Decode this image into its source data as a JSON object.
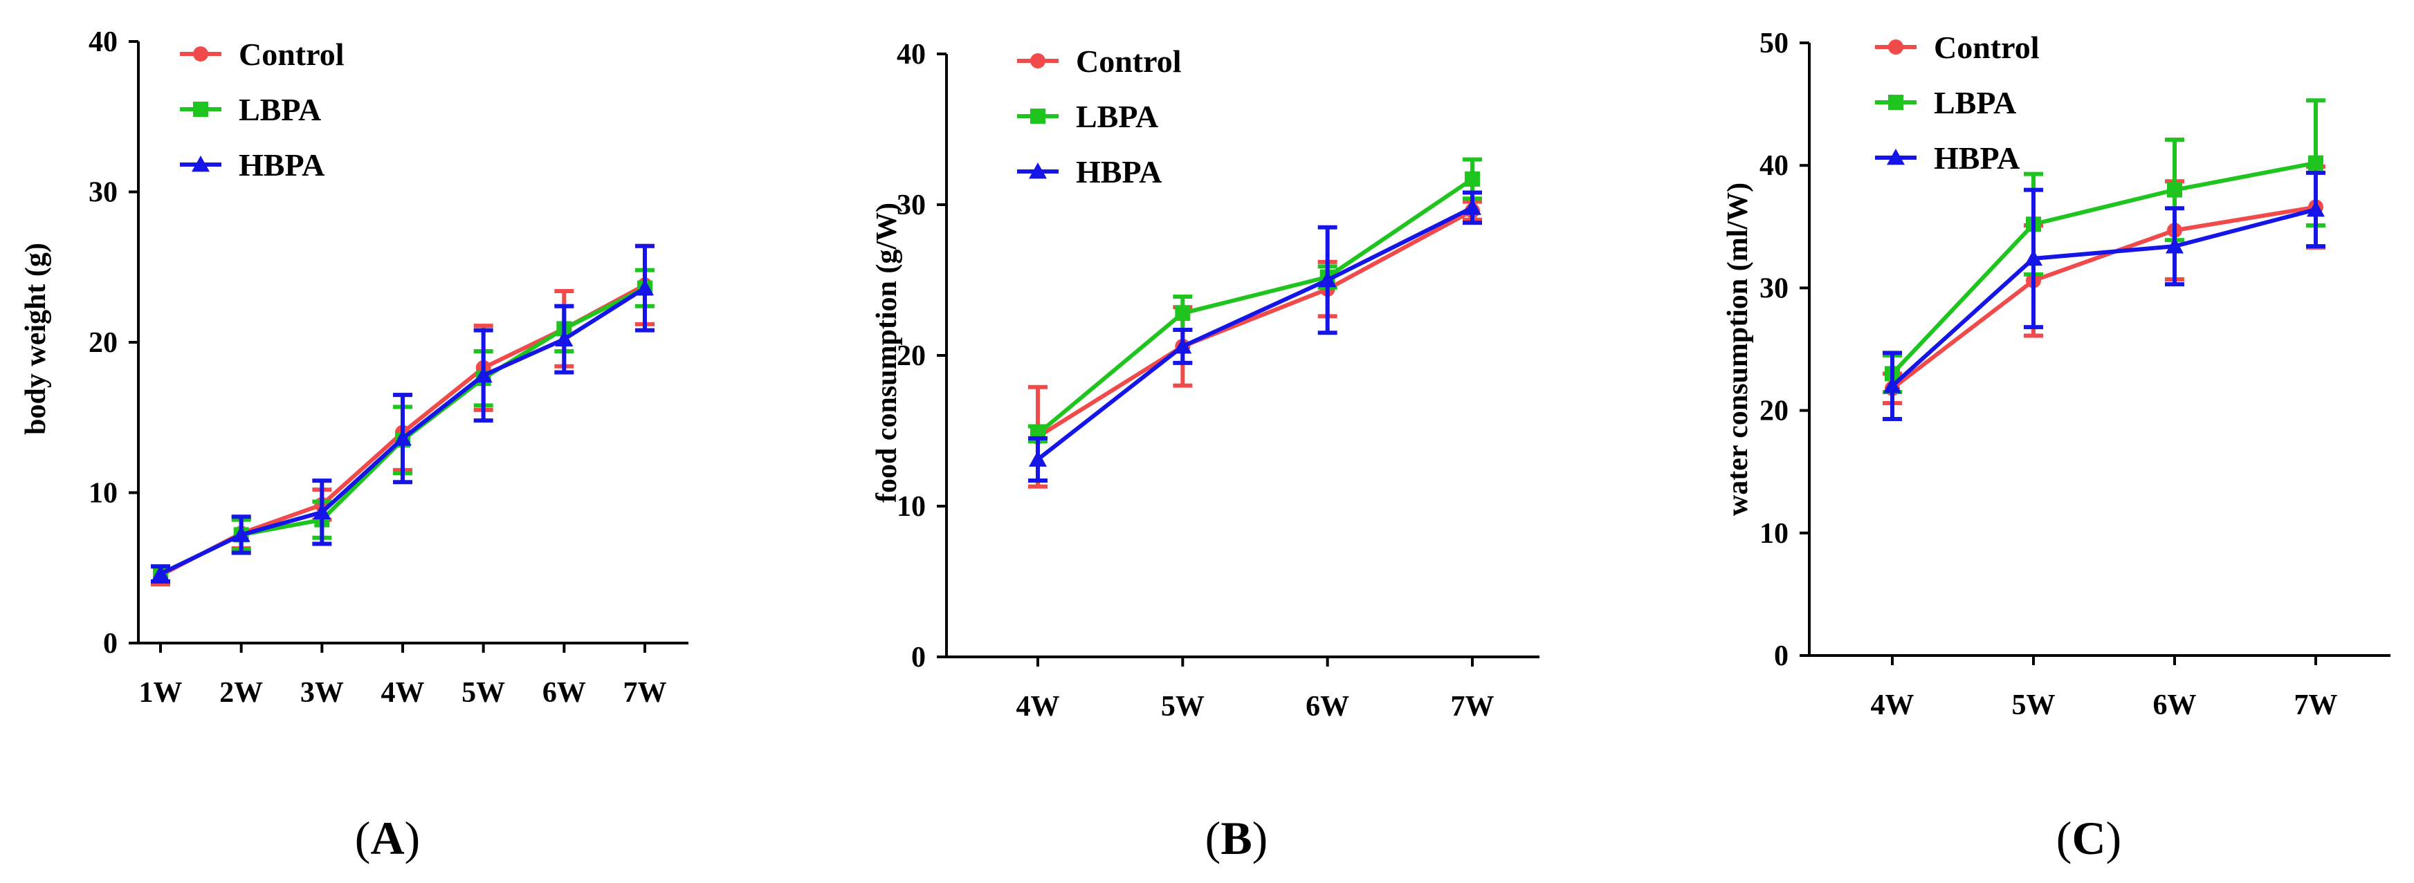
{
  "series_colors": {
    "Control": "#f04a4a",
    "LBPA": "#1fc41f",
    "HBPA": "#1515e8"
  },
  "chart_data": [
    {
      "type": "line",
      "panel_label": "A",
      "xlabel": "",
      "ylabel": "body weight (g)",
      "categories": [
        "1W",
        "2W",
        "3W",
        "4W",
        "5W",
        "6W",
        "7W"
      ],
      "ylim": [
        0,
        40
      ],
      "yticks": [
        0,
        10,
        20,
        30,
        40
      ],
      "legend": [
        "Control",
        "LBPA",
        "HBPA"
      ],
      "series": [
        {
          "name": "Control",
          "marker": "circle",
          "values": [
            4.5,
            7.3,
            9.2,
            14.0,
            18.3,
            20.9,
            23.8
          ],
          "errors": [
            0.6,
            1.0,
            1.0,
            2.5,
            2.8,
            2.5,
            2.6
          ]
        },
        {
          "name": "LBPA",
          "marker": "square",
          "values": [
            4.6,
            7.2,
            8.2,
            13.5,
            17.6,
            20.9,
            23.6
          ],
          "errors": [
            0.5,
            1.0,
            1.2,
            2.2,
            1.8,
            1.5,
            1.2
          ]
        },
        {
          "name": "HBPA",
          "marker": "triangle",
          "values": [
            4.6,
            7.2,
            8.7,
            13.6,
            17.8,
            20.2,
            23.6
          ],
          "errors": [
            0.5,
            1.2,
            2.1,
            2.9,
            3.0,
            2.2,
            2.8
          ]
        }
      ]
    },
    {
      "type": "line",
      "panel_label": "B",
      "xlabel": "",
      "ylabel": "food consumption (g/W)",
      "categories": [
        "4W",
        "5W",
        "6W",
        "7W"
      ],
      "ylim": [
        0,
        40
      ],
      "yticks": [
        0,
        10,
        20,
        30,
        40
      ],
      "legend": [
        "Control",
        "LBPA",
        "HBPA"
      ],
      "series": [
        {
          "name": "Control",
          "marker": "circle",
          "values": [
            14.6,
            20.6,
            24.4,
            29.6
          ],
          "errors": [
            3.3,
            2.6,
            1.8,
            0.6
          ]
        },
        {
          "name": "LBPA",
          "marker": "square",
          "values": [
            14.8,
            22.8,
            25.2,
            31.7
          ],
          "errors": [
            0.5,
            1.1,
            0.7,
            1.3
          ]
        },
        {
          "name": "HBPA",
          "marker": "triangle",
          "values": [
            13.1,
            20.6,
            25.0,
            29.8
          ],
          "errors": [
            1.4,
            1.1,
            3.5,
            1.0
          ]
        }
      ]
    },
    {
      "type": "line",
      "panel_label": "C",
      "xlabel": "",
      "ylabel": "water consumption (ml/W)",
      "categories": [
        "4W",
        "5W",
        "6W",
        "7W"
      ],
      "ylim": [
        0,
        50
      ],
      "yticks": [
        0,
        10,
        20,
        30,
        40,
        50
      ],
      "legend": [
        "Control",
        "LBPA",
        "HBPA"
      ],
      "series": [
        {
          "name": "Control",
          "marker": "circle",
          "values": [
            21.8,
            30.6,
            34.7,
            36.6
          ],
          "errors": [
            1.2,
            4.5,
            4.0,
            3.3
          ]
        },
        {
          "name": "LBPA",
          "marker": "square",
          "values": [
            23.0,
            35.2,
            38.0,
            40.2
          ],
          "errors": [
            1.5,
            4.1,
            4.1,
            5.1
          ]
        },
        {
          "name": "HBPA",
          "marker": "triangle",
          "values": [
            22.0,
            32.4,
            33.4,
            36.4
          ],
          "errors": [
            2.7,
            5.6,
            3.1,
            3.0
          ]
        }
      ]
    }
  ]
}
